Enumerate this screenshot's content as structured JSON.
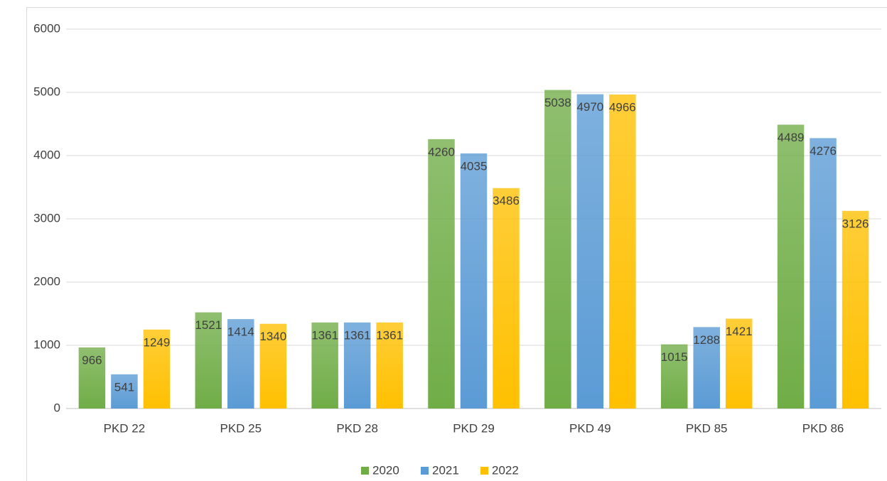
{
  "chart_data": {
    "type": "bar",
    "categories": [
      "PKD 22",
      "PKD 25",
      "PKD 28",
      "PKD 29",
      "PKD 49",
      "PKD 85",
      "PKD 86"
    ],
    "series": [
      {
        "name": "2020",
        "color": "#70ad47",
        "values": [
          966,
          1521,
          1361,
          4260,
          5038,
          1015,
          4489
        ]
      },
      {
        "name": "2021",
        "color": "#5b9bd5",
        "values": [
          541,
          1414,
          1361,
          4035,
          4970,
          1288,
          4276
        ]
      },
      {
        "name": "2022",
        "color": "#ffc000",
        "values": [
          1249,
          1340,
          1361,
          3486,
          4966,
          1421,
          3126
        ]
      }
    ],
    "ylim": [
      0,
      6000
    ],
    "yticks": [
      0,
      1000,
      2000,
      3000,
      4000,
      5000,
      6000
    ],
    "grid": true,
    "legend": "bottom"
  }
}
